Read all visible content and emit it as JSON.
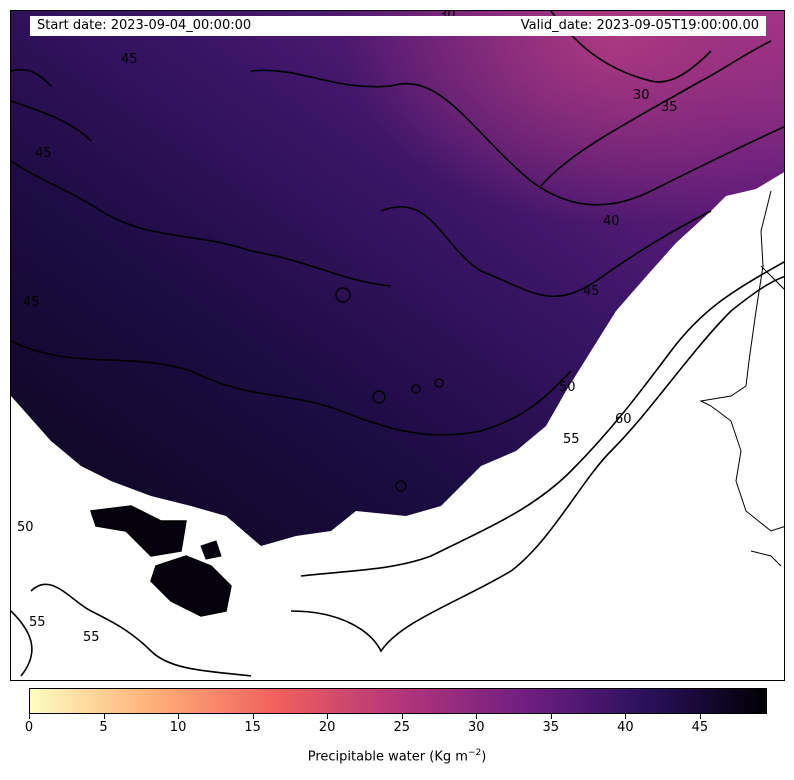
{
  "header": {
    "start_date": "Start date: 2023-09-04_00:00:00",
    "valid_date": "Valid_date: 2023-09-05T19:00:00.00"
  },
  "contour_labels": [
    "30",
    "30",
    "35",
    "40",
    "45",
    "45",
    "45",
    "45",
    "50",
    "55",
    "60",
    "50",
    "55",
    "55"
  ],
  "colorbar": {
    "ticks": [
      "0",
      "5",
      "10",
      "15",
      "20",
      "25",
      "30",
      "35",
      "40",
      "45"
    ],
    "label_text": "Precipitable water (Kg m",
    "label_exp": "−2",
    "label_close": ")",
    "colors": [
      "#fcfdbf",
      "#feb078",
      "#f1605d",
      "#b5367a",
      "#721f81",
      "#2c115f",
      "#000004"
    ]
  },
  "map": {
    "colormap": "magma_r",
    "field_colors": [
      "#2b1056",
      "#3a1466",
      "#5a1d7c",
      "#8b2f86",
      "#0d0620"
    ]
  }
}
